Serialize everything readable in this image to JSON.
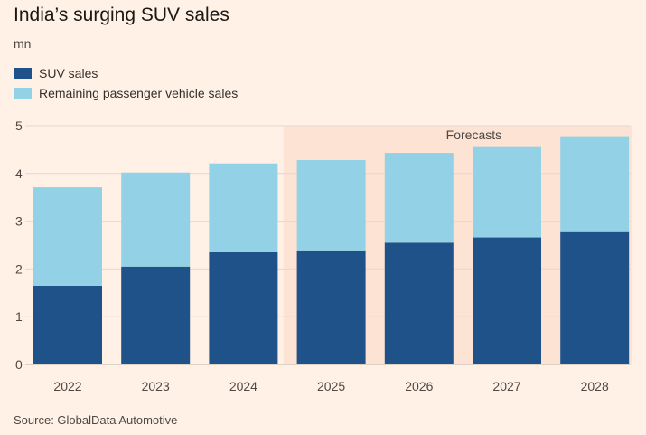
{
  "header": {
    "title": "India’s surging SUV sales",
    "unit": "mn"
  },
  "footer": {
    "source": "Source: GlobalData Automotive"
  },
  "colors": {
    "background": "#fff1e5",
    "suv": "#1f5289",
    "remaining": "#93d1e7",
    "forecast_band": "#fde3d3",
    "gridline": "#e5d8cc"
  },
  "chart_data": {
    "type": "bar",
    "stacked": true,
    "categories": [
      "2022",
      "2023",
      "2024",
      "2025",
      "2026",
      "2027",
      "2028"
    ],
    "series": [
      {
        "name": "SUV sales",
        "values": [
          1.65,
          2.05,
          2.35,
          2.39,
          2.55,
          2.66,
          2.79
        ]
      },
      {
        "name": "Remaining passenger vehicle sales",
        "values": [
          2.06,
          1.97,
          1.86,
          1.89,
          1.88,
          1.91,
          1.99
        ]
      }
    ],
    "totals": [
      3.71,
      4.02,
      4.21,
      4.28,
      4.43,
      4.57,
      4.78
    ],
    "ylim": [
      0,
      5
    ],
    "yticks": [
      0,
      1,
      2,
      3,
      4,
      5
    ],
    "grid": true,
    "legend_position": "top-left",
    "forecast": {
      "label": "Forecasts",
      "categories": [
        "2025",
        "2026",
        "2027",
        "2028"
      ]
    }
  }
}
